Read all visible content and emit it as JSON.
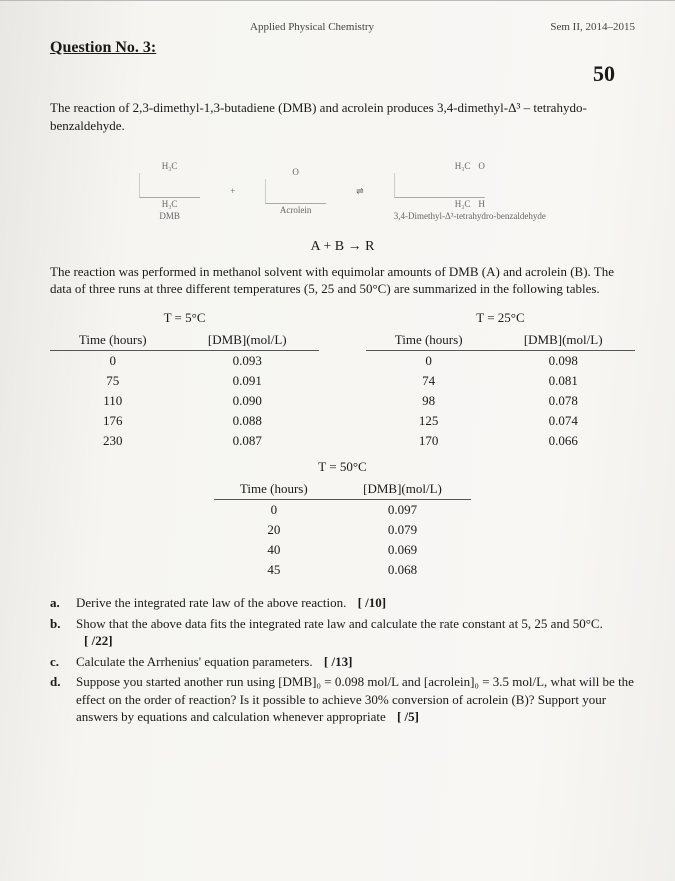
{
  "header": {
    "course": "Applied Physical Chemistry",
    "term": "Sem II, 2014–2015"
  },
  "question_no": "Question No. 3:",
  "total_points": "50",
  "intro": "The reaction of 2,3-dimethyl-1,3-butadiene (DMB) and acrolein produces 3,4-dimethyl-Δ³ – tetrahydo-benzaldehyde.",
  "diagram": {
    "left1": "H₃C",
    "left2": "H₃C",
    "left_lbl": "DMB",
    "mid_lbl": "Acrolein",
    "right1": "H₃C",
    "right2": "H₃C",
    "right_lbl": "3,4-Dimethyl-Δ³-tetrahydro-benzaldehyde",
    "plus": "+",
    "arrow": "⇌",
    "o1": "O",
    "o2": "O",
    "h": "H"
  },
  "reaction_eqn": "A + B → R",
  "desc": "The reaction was performed in methanol solvent with equimolar amounts of DMB (A) and acrolein (B). The data of three runs at three different temperatures (5, 25 and 50°C) are summarized in the following tables.",
  "tables": {
    "col_time": "Time (hours)",
    "col_conc": "[DMB](mol/L)",
    "t5": {
      "title": "T = 5°C",
      "rows": [
        {
          "t": "0",
          "c": "0.093"
        },
        {
          "t": "75",
          "c": "0.091"
        },
        {
          "t": "110",
          "c": "0.090"
        },
        {
          "t": "176",
          "c": "0.088"
        },
        {
          "t": "230",
          "c": "0.087"
        }
      ]
    },
    "t25": {
      "title": "T = 25°C",
      "rows": [
        {
          "t": "0",
          "c": "0.098"
        },
        {
          "t": "74",
          "c": "0.081"
        },
        {
          "t": "98",
          "c": "0.078"
        },
        {
          "t": "125",
          "c": "0.074"
        },
        {
          "t": "170",
          "c": "0.066"
        }
      ]
    },
    "t50": {
      "title": "T = 50°C",
      "rows": [
        {
          "t": "0",
          "c": "0.097"
        },
        {
          "t": "20",
          "c": "0.079"
        },
        {
          "t": "40",
          "c": "0.069"
        },
        {
          "t": "45",
          "c": "0.068"
        }
      ]
    }
  },
  "questions": {
    "a": {
      "m": "a.",
      "text": "Derive the integrated rate law of the above reaction.",
      "pts": "[       /10]"
    },
    "b": {
      "m": "b.",
      "text": "Show that the above data fits the integrated rate law and calculate the rate constant at 5, 25 and 50°C.",
      "pts": "[       /22]"
    },
    "c": {
      "m": "c.",
      "text": "Calculate the Arrhenius' equation parameters.",
      "pts": "[       /13]"
    },
    "d": {
      "m": "d.",
      "text": "Suppose you started another run using [DMB]₀ = 0.098 mol/L and [acrolein]₀ = 3.5 mol/L, what will be the effect on the order of reaction? Is it possible to achieve 30% conversion of acrolein (B)? Support your answers by equations and calculation whenever appropriate",
      "pts": "[       /5]"
    }
  },
  "style": {
    "text_color": "#1a1a1a",
    "bg_color": "#f6f5f2",
    "border_color": "#555555",
    "body_fontsize_pt": 10,
    "title_fontsize_pt": 12,
    "score_fontsize_pt": 18
  }
}
